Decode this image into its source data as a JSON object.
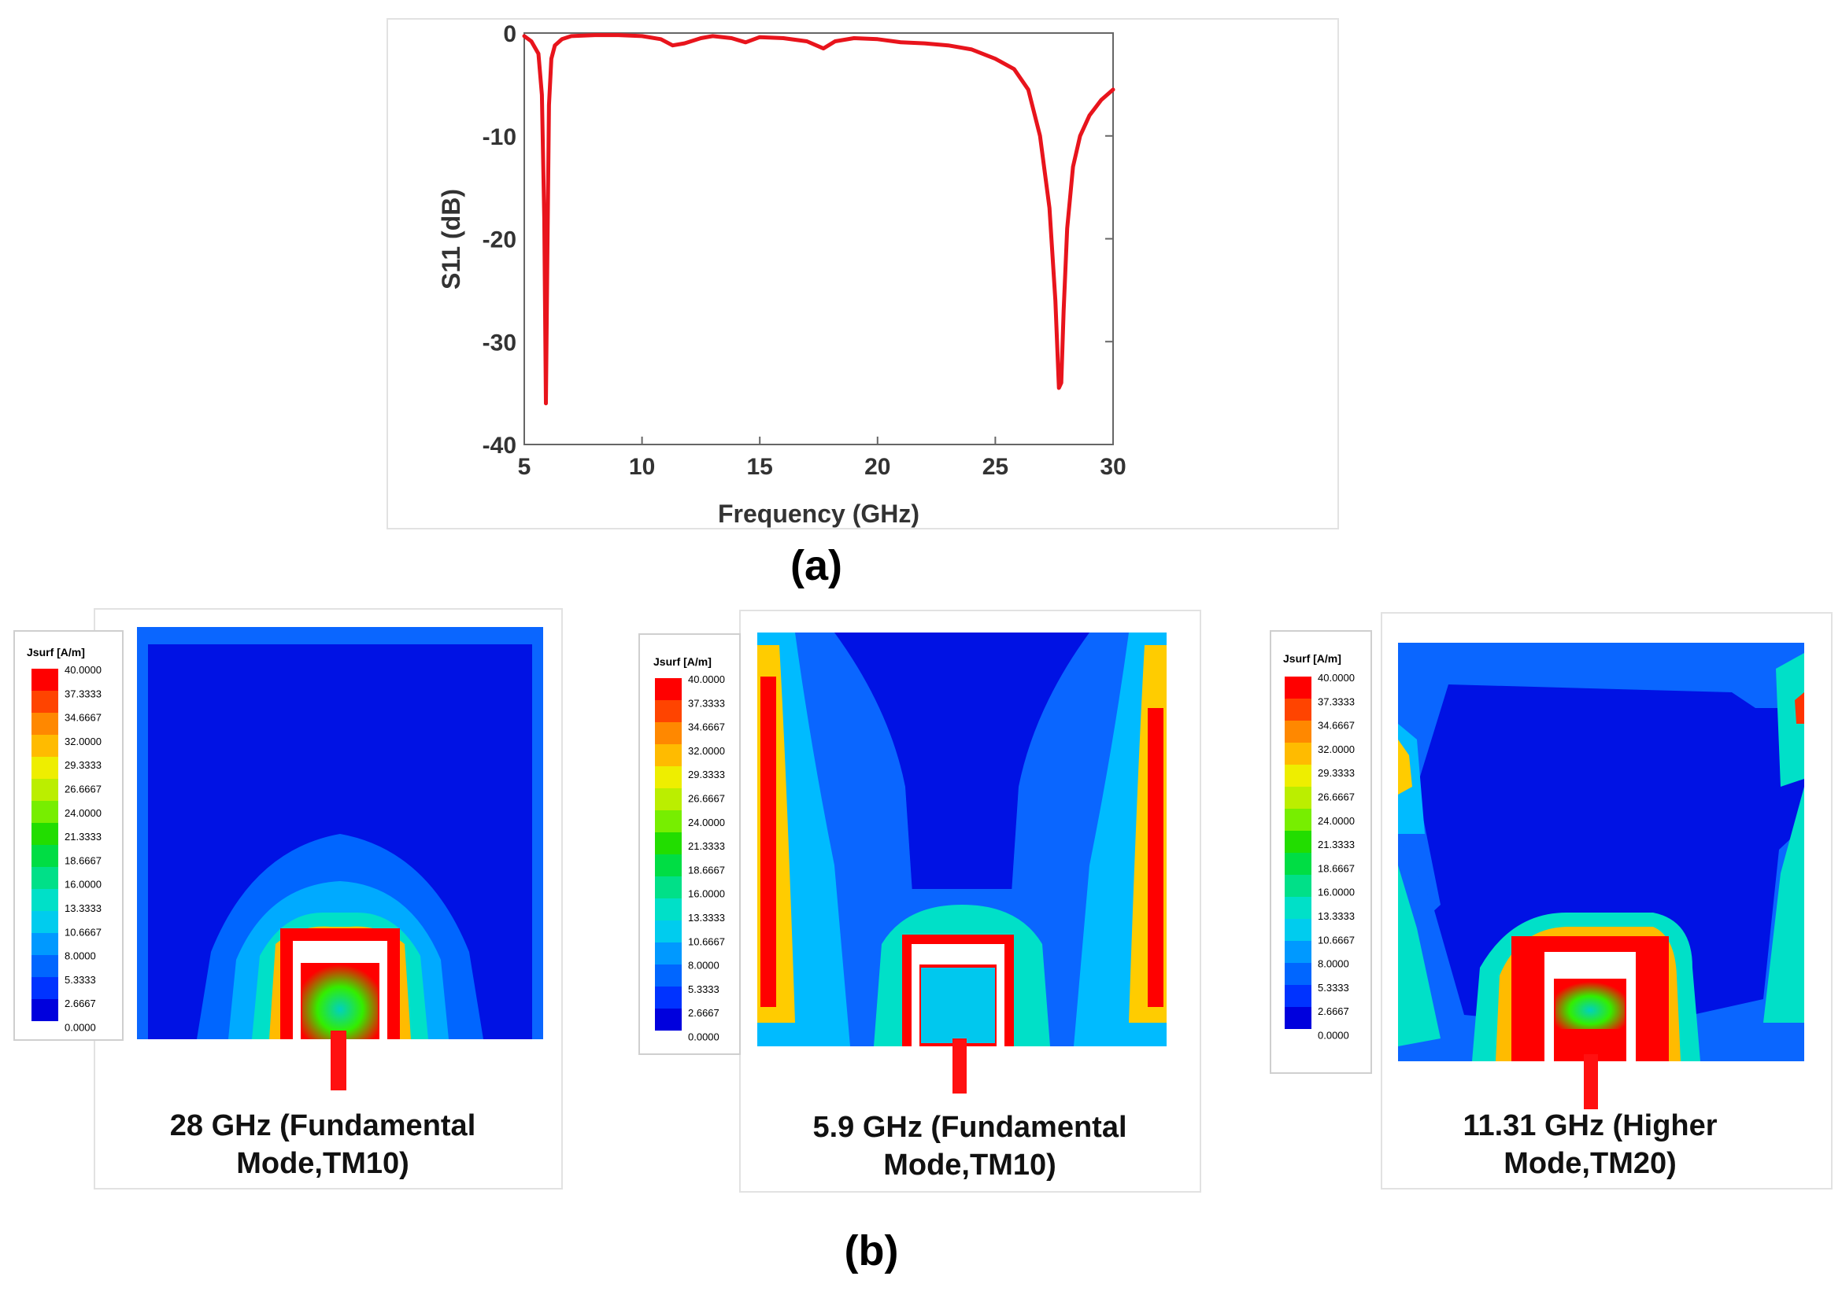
{
  "chart_data": {
    "type": "line",
    "panel_label": "(a)",
    "xlabel": "Frequency (GHz)",
    "ylabel": "S11 (dB)",
    "xlim": [
      5,
      30
    ],
    "ylim": [
      -40,
      0
    ],
    "xticks": [
      "5",
      "10",
      "15",
      "20",
      "25",
      "30"
    ],
    "yticks": [
      "0",
      "-10",
      "-20",
      "-30",
      "-40"
    ],
    "series": [
      {
        "name": "S11",
        "color": "#e8141c",
        "x": [
          5.0,
          5.3,
          5.6,
          5.75,
          5.85,
          5.92,
          5.98,
          6.05,
          6.15,
          6.3,
          6.6,
          7.0,
          8,
          9,
          10,
          10.8,
          11.3,
          11.8,
          12.5,
          13,
          13.8,
          14.4,
          15,
          16,
          17,
          17.7,
          18.2,
          19,
          20,
          21,
          22,
          23,
          24,
          25,
          25.8,
          26.4,
          26.9,
          27.3,
          27.55,
          27.7,
          27.8,
          27.9,
          28.05,
          28.3,
          28.6,
          29,
          29.5,
          30.0
        ],
        "y": [
          -0.3,
          -0.8,
          -2.0,
          -6.0,
          -18.0,
          -36.0,
          -22.0,
          -7.0,
          -2.5,
          -1.2,
          -0.6,
          -0.3,
          -0.2,
          -0.2,
          -0.3,
          -0.6,
          -1.2,
          -1.0,
          -0.5,
          -0.3,
          -0.5,
          -0.9,
          -0.4,
          -0.5,
          -0.8,
          -1.5,
          -0.8,
          -0.5,
          -0.6,
          -0.9,
          -1.0,
          -1.2,
          -1.6,
          -2.5,
          -3.5,
          -5.5,
          -10.0,
          -17.0,
          -26.0,
          -34.5,
          -34.0,
          -27.0,
          -19.0,
          -13.0,
          -10.0,
          -8.0,
          -6.5,
          -5.5
        ]
      }
    ],
    "heatmaps": [
      {
        "caption_line1": "28 GHz (Fundamental",
        "caption_line2": "Mode,TM10)",
        "legend_title": "Jsurf [A/m]",
        "legend_values": [
          "40.0000",
          "37.3333",
          "34.6667",
          "32.0000",
          "29.3333",
          "26.6667",
          "24.0000",
          "21.3333",
          "18.6667",
          "16.0000",
          "13.3333",
          "10.6667",
          "8.0000",
          "5.3333",
          "2.6667",
          "0.0000"
        ]
      },
      {
        "caption_line1": "5.9 GHz (Fundamental",
        "caption_line2": "Mode,TM10)",
        "legend_title": "Jsurf [A/m]",
        "legend_values": [
          "40.0000",
          "37.3333",
          "34.6667",
          "32.0000",
          "29.3333",
          "26.6667",
          "24.0000",
          "21.3333",
          "18.6667",
          "16.0000",
          "13.3333",
          "10.6667",
          "8.0000",
          "5.3333",
          "2.6667",
          "0.0000"
        ]
      },
      {
        "caption_line1": "11.31 GHz (Higher",
        "caption_line2": "Mode,TM20)",
        "legend_title": "Jsurf [A/m]",
        "legend_values": [
          "40.0000",
          "37.3333",
          "34.6667",
          "32.0000",
          "29.3333",
          "26.6667",
          "24.0000",
          "21.3333",
          "18.6667",
          "16.0000",
          "13.3333",
          "10.6667",
          "8.0000",
          "5.3333",
          "2.6667",
          "0.0000"
        ]
      }
    ],
    "panel_label_b": "(b)",
    "legend_colors": [
      "#ff0000",
      "#ff4400",
      "#ff8800",
      "#ffbb00",
      "#eeee00",
      "#bbee00",
      "#77ee00",
      "#22dd00",
      "#00dd44",
      "#00e088",
      "#00e0c8",
      "#00ccee",
      "#0099ff",
      "#0066ff",
      "#0033ff",
      "#0000dd"
    ]
  }
}
